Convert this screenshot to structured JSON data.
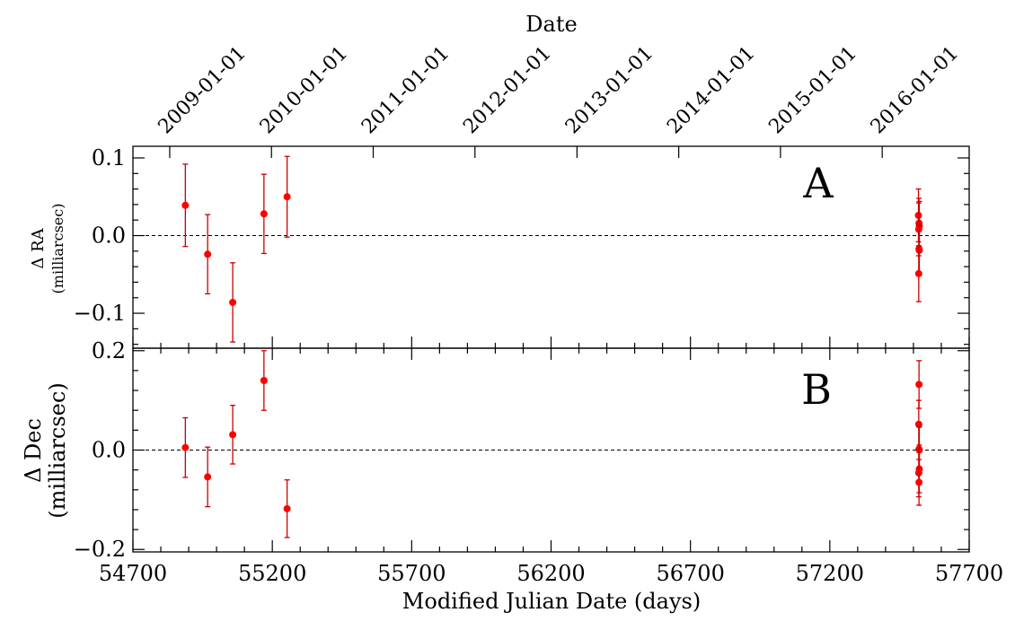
{
  "top_axis": {
    "label": "Date",
    "ticks": [
      {
        "label": "2009-01-01",
        "mjd": 54832
      },
      {
        "label": "2010-01-01",
        "mjd": 55197
      },
      {
        "label": "2011-01-01",
        "mjd": 55562
      },
      {
        "label": "2012-01-01",
        "mjd": 55927
      },
      {
        "label": "2013-01-01",
        "mjd": 56293
      },
      {
        "label": "2014-01-01",
        "mjd": 56658
      },
      {
        "label": "2015-01-01",
        "mjd": 57023
      },
      {
        "label": "2016-01-01",
        "mjd": 57388
      }
    ]
  },
  "colors": {
    "points": "#ff0000",
    "errorbars": "#cc0000",
    "axes": "#000000"
  },
  "chart_data": [
    {
      "type": "scatter",
      "panel_label": "A",
      "ylabel": "Δ RA",
      "ylabel_sub": "(milliarcsec)",
      "xlabel": "",
      "xlim": [
        54700,
        57700
      ],
      "ylim": [
        -0.145,
        0.115
      ],
      "yticks": [
        -0.1,
        0.0,
        0.1
      ],
      "ytick_labels": [
        "−0.1",
        "0.0",
        "0.1"
      ],
      "xticks": [
        54700,
        55200,
        55700,
        56200,
        56700,
        57200,
        57700
      ],
      "zero_line": true,
      "points": [
        {
          "x": 54888,
          "y": 0.039,
          "err": 0.053
        },
        {
          "x": 54968,
          "y": -0.024,
          "err": 0.051
        },
        {
          "x": 55058,
          "y": -0.086,
          "err": 0.051
        },
        {
          "x": 55170,
          "y": 0.028,
          "err": 0.051
        },
        {
          "x": 55253,
          "y": 0.05,
          "err": 0.052
        },
        {
          "x": 57518,
          "y": 0.026,
          "err": 0.034
        },
        {
          "x": 57520,
          "y": 0.016,
          "err": 0.032
        },
        {
          "x": 57521,
          "y": 0.012,
          "err": 0.032
        },
        {
          "x": 57519,
          "y": 0.008,
          "err": 0.034
        },
        {
          "x": 57520,
          "y": -0.017,
          "err": 0.032
        },
        {
          "x": 57521,
          "y": -0.019,
          "err": 0.032
        },
        {
          "x": 57519,
          "y": -0.049,
          "err": 0.036
        }
      ]
    },
    {
      "type": "scatter",
      "panel_label": "B",
      "ylabel": "Δ Dec",
      "ylabel_sub": "(milliarcsec)",
      "xlabel": "Modified Julian Date (days)",
      "xlim": [
        54700,
        57700
      ],
      "ylim": [
        -0.205,
        0.205
      ],
      "yticks": [
        -0.2,
        0.0,
        0.2
      ],
      "ytick_labels": [
        "−0.2",
        "0.0",
        "0.2"
      ],
      "xticks": [
        54700,
        55200,
        55700,
        56200,
        56700,
        57200,
        57700
      ],
      "xtick_labels": [
        "54700",
        "55200",
        "55700",
        "56200",
        "56700",
        "57200",
        "57700"
      ],
      "zero_line": true,
      "points": [
        {
          "x": 54888,
          "y": 0.005,
          "err": 0.06
        },
        {
          "x": 54968,
          "y": -0.054,
          "err": 0.06
        },
        {
          "x": 55058,
          "y": 0.031,
          "err": 0.059
        },
        {
          "x": 55170,
          "y": 0.14,
          "err": 0.06
        },
        {
          "x": 55253,
          "y": -0.118,
          "err": 0.058
        },
        {
          "x": 57520,
          "y": 0.132,
          "err": 0.048
        },
        {
          "x": 57519,
          "y": 0.052,
          "err": 0.048
        },
        {
          "x": 57520,
          "y": 0.002,
          "err": 0.046
        },
        {
          "x": 57521,
          "y": 0.0,
          "err": 0.046
        },
        {
          "x": 57521,
          "y": -0.038,
          "err": 0.048
        },
        {
          "x": 57519,
          "y": -0.046,
          "err": 0.048
        },
        {
          "x": 57520,
          "y": -0.065,
          "err": 0.046
        }
      ]
    }
  ]
}
